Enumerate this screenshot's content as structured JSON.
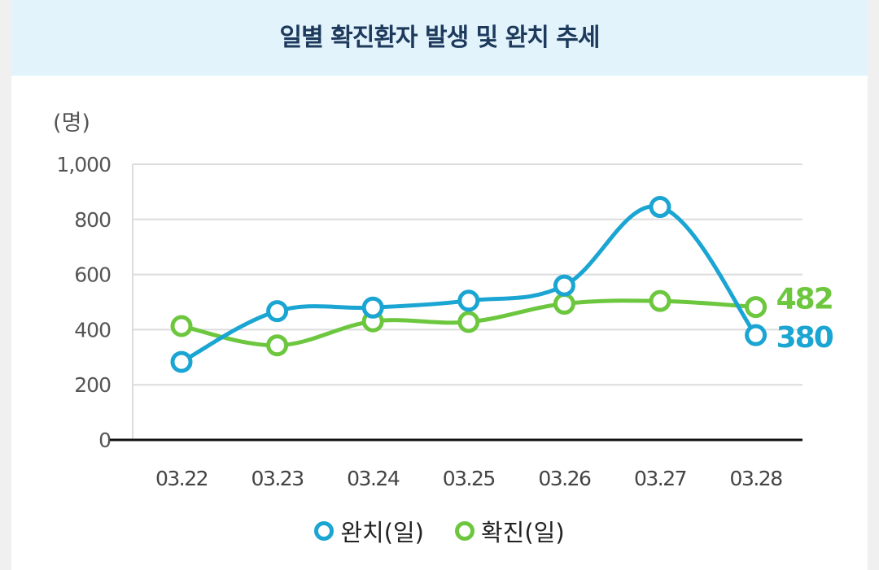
{
  "chart_data": {
    "type": "line",
    "title": "일별 확진환자 발생 및 완치 추세",
    "ylabel": "(명)",
    "categories": [
      "03.22",
      "03.23",
      "03.24",
      "03.25",
      "03.26",
      "03.27",
      "03.28"
    ],
    "ylim": [
      0,
      1000
    ],
    "yticks": [
      0,
      200,
      400,
      600,
      800,
      1000
    ],
    "ytick_labels": [
      "0",
      "200",
      "400",
      "600",
      "800",
      "1,000"
    ],
    "grid": true,
    "legend_position": "bottom-center",
    "series": [
      {
        "name": "완치(일)",
        "color": "#1aa5d2",
        "values": [
          283,
          467,
          480,
          505,
          560,
          845,
          380
        ],
        "end_label": "380"
      },
      {
        "name": "확진(일)",
        "color": "#6cc73e",
        "values": [
          413,
          343,
          430,
          428,
          494,
          504,
          482
        ],
        "end_label": "482"
      }
    ]
  }
}
